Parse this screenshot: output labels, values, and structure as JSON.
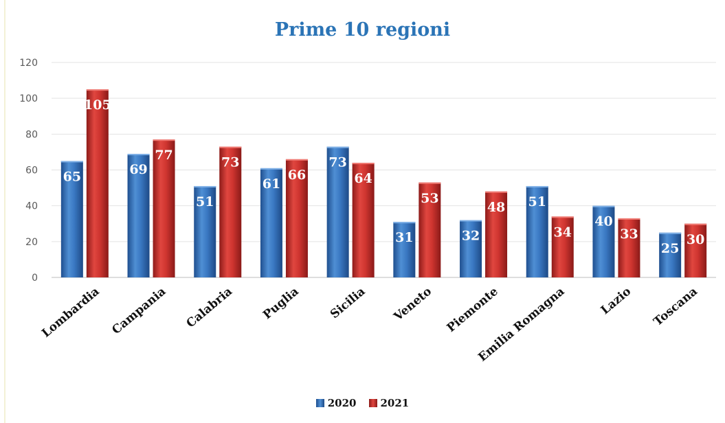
{
  "chart_data": {
    "type": "bar",
    "title": "Prime 10 regioni",
    "categories": [
      "Lombardia",
      "Campania",
      "Calabria",
      "Puglia",
      "Sicilia",
      "Veneto",
      "Piemonte",
      "Emilia Romagna",
      "Lazio",
      "Toscana"
    ],
    "series": [
      {
        "name": "2020",
        "values": [
          65,
          69,
          51,
          61,
          73,
          31,
          32,
          51,
          40,
          25
        ],
        "color": "#2f6fb6"
      },
      {
        "name": "2021",
        "values": [
          105,
          77,
          73,
          66,
          64,
          53,
          48,
          34,
          33,
          30
        ],
        "color": "#c9302c"
      }
    ],
    "ylim": [
      0,
      120
    ],
    "yticks": [
      "0",
      "20",
      "40",
      "60",
      "80",
      "100",
      "120"
    ],
    "grid": true,
    "legend_position": "bottom"
  }
}
